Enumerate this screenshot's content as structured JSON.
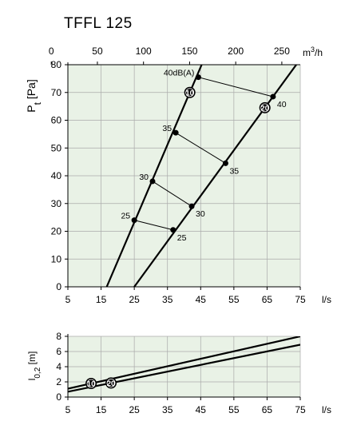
{
  "title": "TFFL 125",
  "chart_data": [
    {
      "type": "line",
      "title": "TFFL 125",
      "ylabel": "P_t [Pa]",
      "xlabel": "l/s",
      "x2label": "m3/h",
      "xlim": [
        5,
        75
      ],
      "ylim": [
        0,
        80
      ],
      "x_ticks": [
        5,
        15,
        25,
        35,
        45,
        55,
        65,
        75
      ],
      "y_ticks": [
        0,
        10,
        20,
        30,
        40,
        50,
        60,
        70,
        80
      ],
      "x2_ticks": [
        0,
        50,
        100,
        150,
        200,
        250
      ],
      "grid": true,
      "series": [
        {
          "name": "10",
          "x": [
            16.7,
            45.3
          ],
          "y": [
            0,
            80
          ]
        },
        {
          "name": "20",
          "x": [
            25.0,
            73.8
          ],
          "y": [
            0,
            80
          ]
        }
      ],
      "sound_level_points": [
        {
          "label": "25",
          "line": "10",
          "x": 25.0,
          "y": 24.0
        },
        {
          "label": "30",
          "line": "10",
          "x": 30.5,
          "y": 38.0
        },
        {
          "label": "35",
          "line": "10",
          "x": 37.5,
          "y": 55.5
        },
        {
          "label": "40dB(A)",
          "line": "10",
          "x": 44.3,
          "y": 75.5
        },
        {
          "label": "25",
          "line": "20",
          "x": 36.7,
          "y": 20.5
        },
        {
          "label": "30",
          "line": "20",
          "x": 42.3,
          "y": 29.0
        },
        {
          "label": "35",
          "line": "20",
          "x": 52.5,
          "y": 44.5
        },
        {
          "label": "40",
          "line": "20",
          "x": 66.8,
          "y": 68.5
        }
      ]
    },
    {
      "type": "line",
      "ylabel": "l_0,2 [m]",
      "xlabel": "l/s",
      "xlim": [
        5,
        75
      ],
      "ylim": [
        0,
        8
      ],
      "x_ticks": [
        5,
        15,
        25,
        35,
        45,
        55,
        65,
        75
      ],
      "y_ticks": [
        0,
        2,
        4,
        6,
        8
      ],
      "grid": true,
      "series": [
        {
          "name": "10",
          "x": [
            5,
            75
          ],
          "y": [
            1.1,
            8.0
          ]
        },
        {
          "name": "20",
          "x": [
            5,
            75
          ],
          "y": [
            0.7,
            6.9
          ]
        }
      ]
    }
  ],
  "colors": {
    "plot_bg": "#e9f2e6",
    "grid": "#aaaaaa",
    "line": "#000000"
  }
}
